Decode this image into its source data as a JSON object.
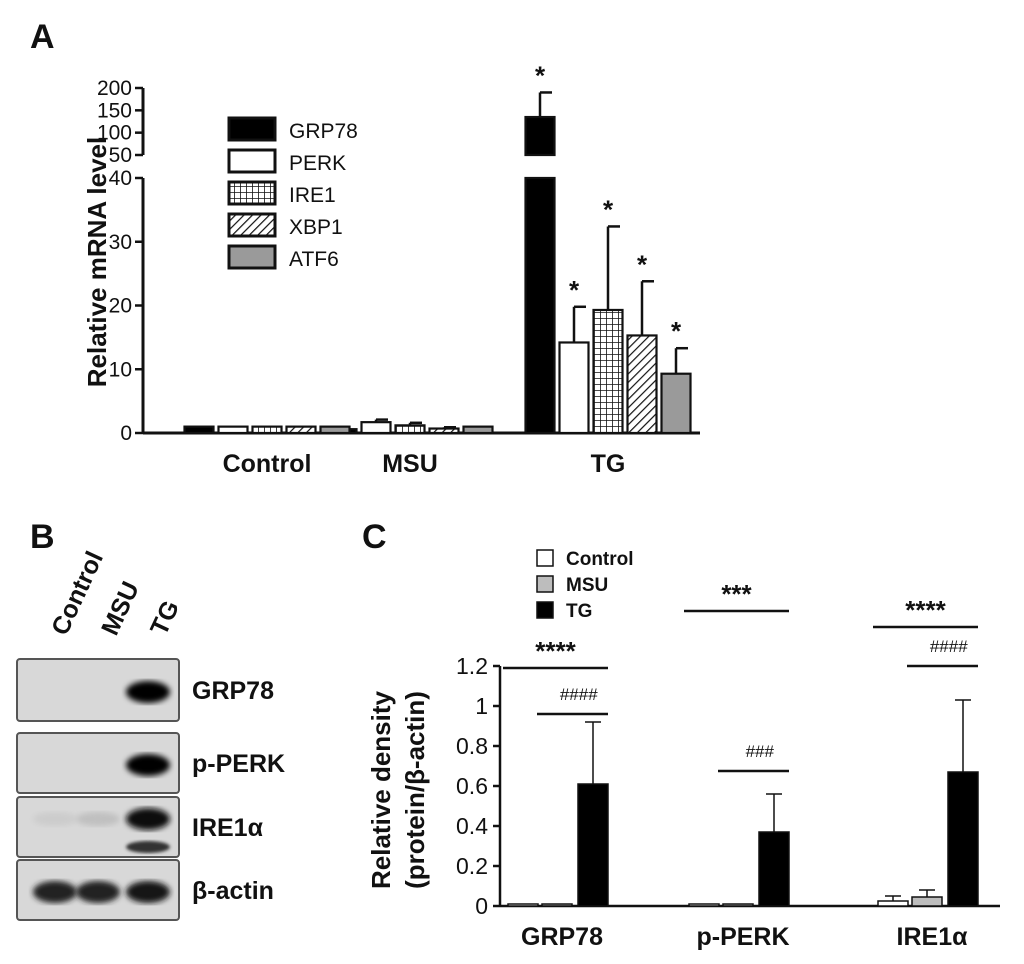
{
  "panels": {
    "a": "A",
    "b": "B",
    "c": "C"
  },
  "chart_data": [
    {
      "type": "bar",
      "panel": "A",
      "ylabel": "Relative mRNA level",
      "categories": [
        "Control",
        "MSU",
        "TG"
      ],
      "y_ticks_lower": [
        "0",
        "10",
        "20",
        "30",
        "40"
      ],
      "y_ticks_upper": [
        "50",
        "100",
        "150",
        "200"
      ],
      "ylim_lower": [
        0,
        40
      ],
      "ylim_upper": [
        50,
        200
      ],
      "axis_break": true,
      "legend_position": "top-left",
      "series": [
        {
          "name": "GRP78",
          "fill": "solid-black",
          "values": [
            1.0,
            0.6,
            135
          ],
          "errors": [
            0,
            0,
            55
          ],
          "sig": [
            "",
            "",
            "*"
          ]
        },
        {
          "name": "PERK",
          "fill": "white",
          "values": [
            1.0,
            1.7,
            14.2
          ],
          "errors": [
            0,
            0.4,
            5.6
          ],
          "sig": [
            "",
            "",
            "*"
          ]
        },
        {
          "name": "IRE1",
          "fill": "grid-pattern",
          "values": [
            1.0,
            1.2,
            19.3
          ],
          "errors": [
            0,
            0.4,
            13.1
          ],
          "sig": [
            "",
            "",
            "*"
          ]
        },
        {
          "name": "XBP1",
          "fill": "diagonal-hatch",
          "values": [
            1.0,
            0.7,
            15.3
          ],
          "errors": [
            0,
            0.2,
            8.5
          ],
          "sig": [
            "",
            "",
            "*"
          ]
        },
        {
          "name": "ATF6",
          "fill": "gray",
          "values": [
            1.0,
            1.0,
            9.3
          ],
          "errors": [
            0,
            0,
            4.0
          ],
          "sig": [
            "",
            "",
            "*"
          ]
        }
      ]
    },
    {
      "type": "bar",
      "panel": "C",
      "ylabel_line1": "Relative density",
      "ylabel_line2": "(protein/β-actin)",
      "categories": [
        "GRP78",
        "p-PERK",
        "IRE1α"
      ],
      "y_ticks": [
        "0",
        "0.2",
        "0.4",
        "0.6",
        "0.8",
        "1",
        "1.2"
      ],
      "ylim": [
        0,
        1.2
      ],
      "legend_position": "top-left",
      "series": [
        {
          "name": "Control",
          "color": "#ffffff",
          "values": [
            0.005,
            0.005,
            0.025
          ],
          "errors": [
            0,
            0,
            0.025
          ]
        },
        {
          "name": "MSU",
          "color": "#bdbdbd",
          "values": [
            0.005,
            0.005,
            0.045
          ],
          "errors": [
            0,
            0,
            0.035
          ]
        },
        {
          "name": "TG",
          "color": "#000000",
          "values": [
            0.61,
            0.37,
            0.67
          ],
          "errors": [
            0.31,
            0.19,
            0.36
          ]
        }
      ],
      "comparisons": [
        {
          "category": "GRP78",
          "from": "Control",
          "to": "TG",
          "label": "****"
        },
        {
          "category": "GRP78",
          "from": "MSU",
          "to": "TG",
          "label": "####"
        },
        {
          "category": "p-PERK",
          "from": "Control",
          "to": "TG",
          "label": "***"
        },
        {
          "category": "p-PERK",
          "from": "MSU",
          "to": "TG",
          "label": "###"
        },
        {
          "category": "IRE1α",
          "from": "Control",
          "to": "TG",
          "label": "****"
        },
        {
          "category": "IRE1α",
          "from": "MSU",
          "to": "TG",
          "label": "####"
        }
      ]
    }
  ],
  "blot": {
    "lanes": [
      "Control",
      "MSU",
      "TG"
    ],
    "rows": [
      {
        "label": "GRP78",
        "intensity": [
          0.0,
          0.0,
          1.0
        ]
      },
      {
        "label": "p-PERK",
        "intensity": [
          0.0,
          0.0,
          1.0
        ]
      },
      {
        "label": "IRE1α",
        "intensity": [
          0.15,
          0.2,
          0.95
        ]
      },
      {
        "label": "β-actin",
        "intensity": [
          0.85,
          0.85,
          0.9
        ]
      }
    ]
  },
  "colors": {
    "ink": "#111111",
    "gray_bar": "#9a9a9a",
    "msu_bar": "#bdbdbd",
    "blot_bg": "#d8d8d8"
  }
}
